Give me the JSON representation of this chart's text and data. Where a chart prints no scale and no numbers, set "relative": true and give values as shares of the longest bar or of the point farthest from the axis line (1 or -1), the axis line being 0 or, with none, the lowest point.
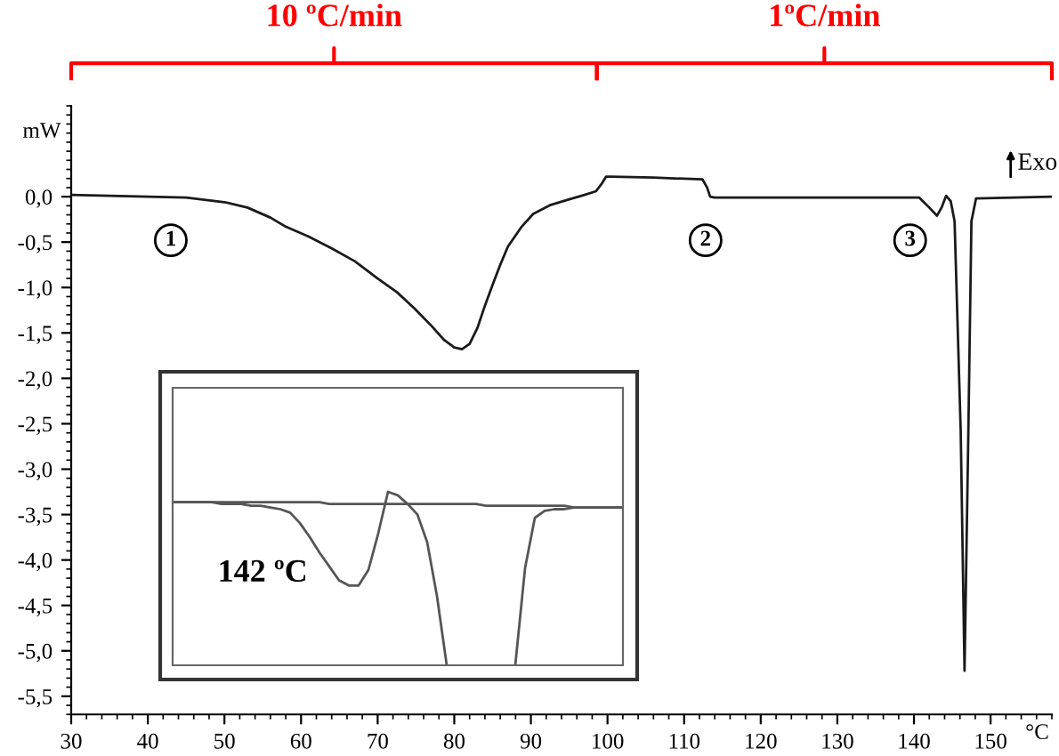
{
  "chart_data": [
    {
      "type": "line",
      "xlabel": "°C",
      "ylabel": "mW",
      "xlim": [
        30,
        158
      ],
      "ylim": [
        -5.7,
        1.0
      ],
      "xticks": [
        30,
        40,
        50,
        60,
        70,
        80,
        90,
        100,
        110,
        120,
        130,
        140,
        150
      ],
      "yticks": [
        {
          "value": 0,
          "label": "0,0"
        },
        {
          "value": -0.5,
          "label": "-0,5"
        },
        {
          "value": -1,
          "label": "-1,0"
        },
        {
          "value": -1.5,
          "label": "-1,5"
        },
        {
          "value": -2,
          "label": "-2,0"
        },
        {
          "value": -2.5,
          "label": "-2,5"
        },
        {
          "value": -3,
          "label": "-3,0"
        },
        {
          "value": -3.5,
          "label": "-3,5"
        },
        {
          "value": -4,
          "label": "-4,0"
        },
        {
          "value": -4.5,
          "label": "-4,5"
        },
        {
          "value": -5,
          "label": "-5,0"
        },
        {
          "value": -5.5,
          "label": "-5,5"
        }
      ],
      "grid": false,
      "series": [
        {
          "color": "#1a1a1a",
          "x": [
            30,
            40,
            45,
            50,
            53,
            56,
            58,
            61,
            64,
            67,
            70,
            72.5,
            74.8,
            77,
            78.7,
            80,
            81,
            82,
            83,
            84,
            85,
            86,
            87,
            88.8,
            90.3,
            92.6,
            95,
            97,
            98.5,
            99.3,
            99.8,
            100.5,
            106,
            112.4,
            113,
            113.4,
            114,
            140.7,
            142,
            143,
            143.6,
            144.2,
            144.8,
            145.3,
            146.1,
            146.6,
            147.1,
            147.5,
            148.1,
            158
          ],
          "values": [
            0.02,
            0.0,
            -0.01,
            -0.06,
            -0.12,
            -0.23,
            -0.33,
            -0.44,
            -0.57,
            -0.71,
            -0.9,
            -1.05,
            -1.23,
            -1.42,
            -1.58,
            -1.66,
            -1.68,
            -1.62,
            -1.45,
            -1.2,
            -0.97,
            -0.75,
            -0.55,
            -0.33,
            -0.19,
            -0.09,
            -0.03,
            0.02,
            0.06,
            0.15,
            0.22,
            0.22,
            0.21,
            0.19,
            0.1,
            0.0,
            -0.01,
            -0.01,
            -0.12,
            -0.21,
            -0.12,
            0.01,
            -0.05,
            -0.27,
            -2.58,
            -5.22,
            -2.58,
            -0.27,
            -0.02,
            0.0
          ]
        }
      ],
      "annotations": [
        "10 ºC/min",
        "1ºC/min",
        {
          "text": "1",
          "x": 43,
          "y": -0.48
        },
        {
          "text": "2",
          "x": 112.8,
          "y": -0.48
        },
        {
          "text": "3",
          "x": 139.5,
          "y": -0.48
        },
        "Exo"
      ]
    },
    {
      "type": "line",
      "relative": true,
      "tick_labels": false,
      "categories": [
        null,
        null,
        null,
        null,
        null,
        null,
        null,
        null,
        null,
        null,
        null,
        null,
        null,
        null,
        null,
        null,
        null,
        null,
        null,
        null,
        null,
        null,
        null,
        null,
        null,
        null,
        null,
        null,
        null,
        null,
        null,
        null,
        null,
        null,
        null,
        null,
        null,
        null,
        null,
        null,
        null,
        null,
        null,
        null,
        null,
        null,
        null
      ],
      "series": [
        {
          "color": "#555555",
          "values": [
            0.94,
            0.94,
            0.94,
            0.94,
            0.94,
            0.94,
            0.94,
            0.94,
            0.94,
            0.94,
            0.94,
            0.94,
            0.94,
            0.94,
            0.94,
            0.94,
            0.93,
            0.93,
            0.93,
            0.93,
            0.93,
            0.93,
            0.93,
            0.93,
            0.93,
            0.93,
            0.93,
            0.93,
            0.93,
            0.93,
            0.93,
            0.93,
            0.92,
            0.92,
            0.92,
            0.92,
            0.92,
            0.92,
            0.92,
            0.92,
            0.92,
            0.91,
            0.91,
            0.91,
            0.91,
            0.91,
            0.91
          ]
        },
        {
          "color": "#555555",
          "values": [
            0.94,
            0.94,
            0.94,
            0.94,
            0.94,
            0.93,
            0.93,
            0.93,
            0.92,
            0.92,
            0.91,
            0.9,
            0.88,
            0.82,
            0.74,
            0.65,
            0.57,
            0.49,
            0.46,
            0.46,
            0.55,
            0.76,
            1.0,
            0.98,
            0.93,
            0.87,
            0.71,
            0.4,
            0,
            null,
            null,
            null,
            null,
            null,
            null,
            0,
            0.56,
            0.85,
            0.89,
            0.9,
            0.9,
            0.91,
            0.91,
            0.91,
            0.91,
            0.91,
            0.91
          ]
        }
      ],
      "annotations": [
        "142 ºC"
      ]
    }
  ]
}
